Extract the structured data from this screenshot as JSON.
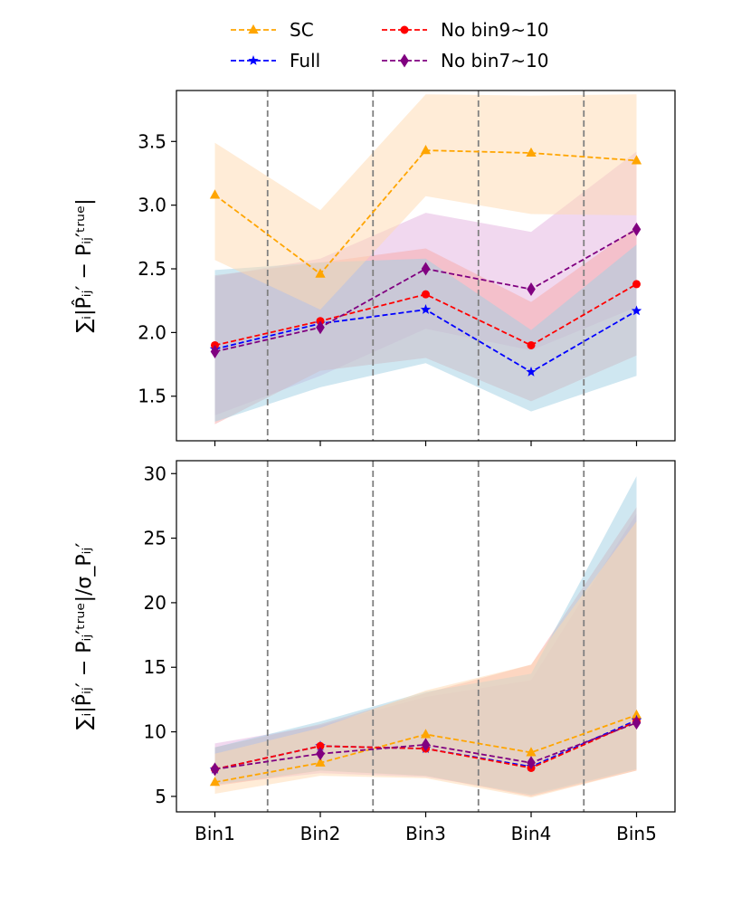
{
  "chart_data": [
    {
      "type": "line",
      "categories": [
        "Bin1",
        "Bin2",
        "Bin3",
        "Bin4",
        "Bin5"
      ],
      "ylabel": "∑ᵢ|P̂ᵢⱼ′ − Pᵢⱼ′ᵗʳᵘᵉ|",
      "ylim": [
        1.15,
        3.9
      ],
      "yticks": [
        1.5,
        2.0,
        2.5,
        3.0,
        3.5
      ],
      "yticklabels": [
        "1.5",
        "2.0",
        "2.5",
        "3.0",
        "3.5"
      ],
      "vlines_between_bins": true,
      "series": [
        {
          "name": "SC",
          "color": "#FFA500",
          "band_color": "#FFDAB0",
          "marker": "triangle",
          "values": [
            3.08,
            2.46,
            3.43,
            3.41,
            3.35
          ],
          "band_low": [
            2.57,
            2.18,
            3.07,
            2.93,
            2.92
          ],
          "band_high": [
            3.49,
            2.96,
            3.87,
            3.86,
            3.87
          ]
        },
        {
          "name": "Full",
          "color": "#0000FF",
          "band_color": "#9FD0E3",
          "marker": "star",
          "values": [
            1.87,
            2.07,
            2.18,
            1.69,
            2.17
          ],
          "band_low": [
            1.3,
            1.57,
            1.76,
            1.38,
            1.66
          ],
          "band_high": [
            2.49,
            2.55,
            2.58,
            2.02,
            2.69
          ]
        },
        {
          "name": "No bin9~10",
          "color": "#FF0000",
          "band_color": "#F7A8A8",
          "marker": "circle",
          "values": [
            1.9,
            2.09,
            2.3,
            1.9,
            2.38
          ],
          "band_low": [
            1.28,
            1.7,
            1.8,
            1.46,
            1.82
          ],
          "band_high": [
            2.45,
            2.55,
            2.66,
            2.24,
            2.83
          ]
        },
        {
          "name": "No bin7~10",
          "color": "#800080",
          "band_color": "#E3B1DF",
          "marker": "diamond",
          "values": [
            1.85,
            2.04,
            2.5,
            2.34,
            2.81
          ],
          "band_low": [
            1.35,
            1.66,
            2.03,
            1.86,
            2.2
          ],
          "band_high": [
            2.44,
            2.58,
            2.94,
            2.79,
            3.42
          ]
        }
      ]
    },
    {
      "type": "line",
      "categories": [
        "Bin1",
        "Bin2",
        "Bin3",
        "Bin4",
        "Bin5"
      ],
      "ylabel": "∑ᵢ|P̂ᵢⱼ′ − Pᵢⱼ′ᵗʳᵘᵉ|/σ_Pᵢⱼ′",
      "ylim": [
        3.8,
        31.0
      ],
      "yticks": [
        5,
        10,
        15,
        20,
        25,
        30
      ],
      "yticklabels": [
        "5",
        "10",
        "15",
        "20",
        "25",
        "30"
      ],
      "vlines_between_bins": true,
      "series": [
        {
          "name": "SC",
          "color": "#FFA500",
          "band_color": "#FFDAB0",
          "marker": "triangle",
          "values": [
            6.1,
            7.6,
            9.8,
            8.4,
            11.3
          ],
          "band_low": [
            5.2,
            6.6,
            6.4,
            4.9,
            7.0
          ],
          "band_high": [
            8.3,
            10.3,
            13.2,
            15.2,
            26.3
          ]
        },
        {
          "name": "Full",
          "color": "#0000FF",
          "band_color": "#9FD0E3",
          "marker": "star",
          "values": [
            7.1,
            8.9,
            8.7,
            7.3,
            10.9
          ],
          "band_low": [
            5.9,
            7.0,
            6.6,
            5.1,
            7.1
          ],
          "band_high": [
            8.8,
            10.8,
            13.1,
            14.5,
            29.8
          ]
        },
        {
          "name": "No bin9~10",
          "color": "#FF0000",
          "band_color": "#F7A8A8",
          "marker": "circle",
          "values": [
            7.1,
            8.9,
            8.7,
            7.2,
            10.8
          ],
          "band_low": [
            5.8,
            7.0,
            6.6,
            5.0,
            7.0
          ],
          "band_high": [
            8.8,
            10.6,
            13.0,
            15.2,
            27.4
          ]
        },
        {
          "name": "No bin7~10",
          "color": "#800080",
          "band_color": "#E3B1DF",
          "marker": "diamond",
          "values": [
            7.1,
            8.3,
            9.0,
            7.6,
            10.7
          ],
          "band_low": [
            5.9,
            6.8,
            6.5,
            5.2,
            7.1
          ],
          "band_high": [
            9.1,
            10.5,
            12.7,
            14.0,
            26.9
          ]
        }
      ]
    }
  ],
  "legend": {
    "items": [
      {
        "label": "SC",
        "color": "#FFA500",
        "marker": "triangle"
      },
      {
        "label": "Full",
        "color": "#0000FF",
        "marker": "star"
      },
      {
        "label": "No bin9~10",
        "color": "#FF0000",
        "marker": "circle"
      },
      {
        "label": "No bin7~10",
        "color": "#800080",
        "marker": "diamond"
      }
    ],
    "placement": "top-center"
  }
}
